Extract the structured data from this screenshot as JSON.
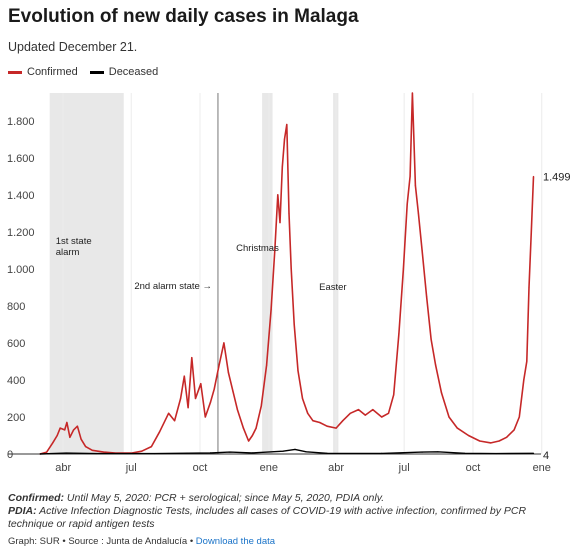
{
  "header": {
    "title": "Evolution of new daily cases in Malaga",
    "subtitle": "Updated December 21."
  },
  "legend": {
    "items": [
      {
        "label": "Confirmed",
        "color": "#c62828"
      },
      {
        "label": "Deceased",
        "color": "#000000"
      }
    ]
  },
  "notes": {
    "confirmed_label": "Confirmed:",
    "confirmed_text": "Until May 5, 2020: PCR + serological; since May 5, 2020, PDIA only.",
    "pdia_label": "PDIA:",
    "pdia_text": "Active Infection Diagnostic Tests, includes all cases of COVID-19 with active infection, confirmed by PCR technique or rapid antigen tests"
  },
  "credits": {
    "text": "Graph: SUR • Source : Junta de Andalucía •",
    "link": "Download the data"
  },
  "chart_data": {
    "type": "line",
    "title": "Evolution of new daily cases in Malaga",
    "xlabel": "",
    "ylabel": "",
    "ylim": [
      0,
      1950
    ],
    "xlim": [
      "2020-03-01",
      "2021-12-31"
    ],
    "yticks": [
      0,
      200,
      400,
      600,
      800,
      1000,
      1200,
      1400,
      1600,
      1800
    ],
    "yticklabels": [
      "0",
      "200",
      "400",
      "600",
      "800",
      "1.000",
      "1.200",
      "1.400",
      "1.600",
      "1.800"
    ],
    "xticks": [
      "2020-04-01",
      "2020-07-01",
      "2020-10-01",
      "2021-01-01",
      "2021-04-01",
      "2021-07-01",
      "2021-10-01",
      "2022-01-01"
    ],
    "xticklabels": [
      "abr",
      "jul",
      "oct",
      "ene",
      "abr",
      "jul",
      "oct",
      "ene"
    ],
    "grid": "vertical",
    "legend_position": "top-left",
    "series": [
      {
        "name": "Confirmed",
        "color": "#c62828",
        "points": [
          [
            "2020-03-01",
            0
          ],
          [
            "2020-03-10",
            10
          ],
          [
            "2020-03-18",
            60
          ],
          [
            "2020-03-24",
            100
          ],
          [
            "2020-03-28",
            140
          ],
          [
            "2020-04-03",
            130
          ],
          [
            "2020-04-06",
            170
          ],
          [
            "2020-04-10",
            90
          ],
          [
            "2020-04-15",
            130
          ],
          [
            "2020-04-20",
            150
          ],
          [
            "2020-04-25",
            80
          ],
          [
            "2020-05-01",
            40
          ],
          [
            "2020-05-10",
            20
          ],
          [
            "2020-05-25",
            10
          ],
          [
            "2020-06-10",
            5
          ],
          [
            "2020-07-01",
            5
          ],
          [
            "2020-07-15",
            15
          ],
          [
            "2020-07-28",
            40
          ],
          [
            "2020-08-08",
            120
          ],
          [
            "2020-08-20",
            220
          ],
          [
            "2020-08-28",
            180
          ],
          [
            "2020-09-05",
            300
          ],
          [
            "2020-09-10",
            420
          ],
          [
            "2020-09-15",
            250
          ],
          [
            "2020-09-20",
            520
          ],
          [
            "2020-09-25",
            300
          ],
          [
            "2020-10-02",
            380
          ],
          [
            "2020-10-08",
            200
          ],
          [
            "2020-10-15",
            280
          ],
          [
            "2020-10-20",
            350
          ],
          [
            "2020-10-26",
            470
          ],
          [
            "2020-11-02",
            600
          ],
          [
            "2020-11-08",
            440
          ],
          [
            "2020-11-14",
            340
          ],
          [
            "2020-11-20",
            240
          ],
          [
            "2020-11-28",
            140
          ],
          [
            "2020-12-05",
            70
          ],
          [
            "2020-12-10",
            100
          ],
          [
            "2020-12-15",
            140
          ],
          [
            "2020-12-22",
            260
          ],
          [
            "2020-12-29",
            480
          ],
          [
            "2021-01-04",
            780
          ],
          [
            "2021-01-09",
            1100
          ],
          [
            "2021-01-13",
            1400
          ],
          [
            "2021-01-16",
            1250
          ],
          [
            "2021-01-19",
            1550
          ],
          [
            "2021-01-22",
            1700
          ],
          [
            "2021-01-25",
            1780
          ],
          [
            "2021-01-28",
            1300
          ],
          [
            "2021-01-31",
            1000
          ],
          [
            "2021-02-04",
            700
          ],
          [
            "2021-02-09",
            450
          ],
          [
            "2021-02-15",
            300
          ],
          [
            "2021-02-22",
            220
          ],
          [
            "2021-03-01",
            180
          ],
          [
            "2021-03-10",
            170
          ],
          [
            "2021-03-20",
            150
          ],
          [
            "2021-04-01",
            140
          ],
          [
            "2021-04-10",
            180
          ],
          [
            "2021-04-20",
            220
          ],
          [
            "2021-05-01",
            240
          ],
          [
            "2021-05-10",
            210
          ],
          [
            "2021-05-20",
            240
          ],
          [
            "2021-06-01",
            200
          ],
          [
            "2021-06-10",
            220
          ],
          [
            "2021-06-17",
            320
          ],
          [
            "2021-06-24",
            650
          ],
          [
            "2021-06-30",
            1000
          ],
          [
            "2021-07-05",
            1350
          ],
          [
            "2021-07-09",
            1500
          ],
          [
            "2021-07-12",
            1950
          ],
          [
            "2021-07-16",
            1450
          ],
          [
            "2021-07-20",
            1300
          ],
          [
            "2021-07-25",
            1100
          ],
          [
            "2021-07-31",
            850
          ],
          [
            "2021-08-06",
            620
          ],
          [
            "2021-08-12",
            480
          ],
          [
            "2021-08-20",
            330
          ],
          [
            "2021-08-30",
            200
          ],
          [
            "2021-09-10",
            140
          ],
          [
            "2021-09-25",
            100
          ],
          [
            "2021-10-10",
            70
          ],
          [
            "2021-10-25",
            60
          ],
          [
            "2021-11-05",
            70
          ],
          [
            "2021-11-15",
            90
          ],
          [
            "2021-11-25",
            130
          ],
          [
            "2021-12-02",
            200
          ],
          [
            "2021-12-08",
            400
          ],
          [
            "2021-12-12",
            500
          ],
          [
            "2021-12-15",
            900
          ],
          [
            "2021-12-18",
            1200
          ],
          [
            "2021-12-21",
            1499
          ]
        ]
      },
      {
        "name": "Deceased",
        "color": "#000000",
        "points": [
          [
            "2020-03-01",
            0
          ],
          [
            "2020-04-05",
            5
          ],
          [
            "2020-05-15",
            2
          ],
          [
            "2020-08-01",
            2
          ],
          [
            "2020-10-15",
            6
          ],
          [
            "2020-11-10",
            10
          ],
          [
            "2020-12-10",
            6
          ],
          [
            "2021-01-20",
            15
          ],
          [
            "2021-02-05",
            25
          ],
          [
            "2021-02-20",
            12
          ],
          [
            "2021-03-20",
            4
          ],
          [
            "2021-06-01",
            3
          ],
          [
            "2021-07-25",
            10
          ],
          [
            "2021-08-15",
            12
          ],
          [
            "2021-09-20",
            4
          ],
          [
            "2021-11-01",
            2
          ],
          [
            "2021-12-21",
            4
          ]
        ]
      }
    ],
    "end_labels": [
      {
        "series": "Confirmed",
        "text": "1.499"
      },
      {
        "series": "Deceased",
        "text": "4"
      }
    ],
    "annotations": [
      {
        "type": "band",
        "from": "2020-03-14",
        "to": "2020-06-21",
        "label": "1st state\nalarm"
      },
      {
        "type": "line",
        "at": "2020-10-25",
        "label": "2nd alarm state →"
      },
      {
        "type": "band",
        "from": "2020-12-23",
        "to": "2021-01-06",
        "label": "Christmas"
      },
      {
        "type": "band",
        "from": "2021-03-28",
        "to": "2021-04-04",
        "label": "Easter"
      }
    ]
  }
}
